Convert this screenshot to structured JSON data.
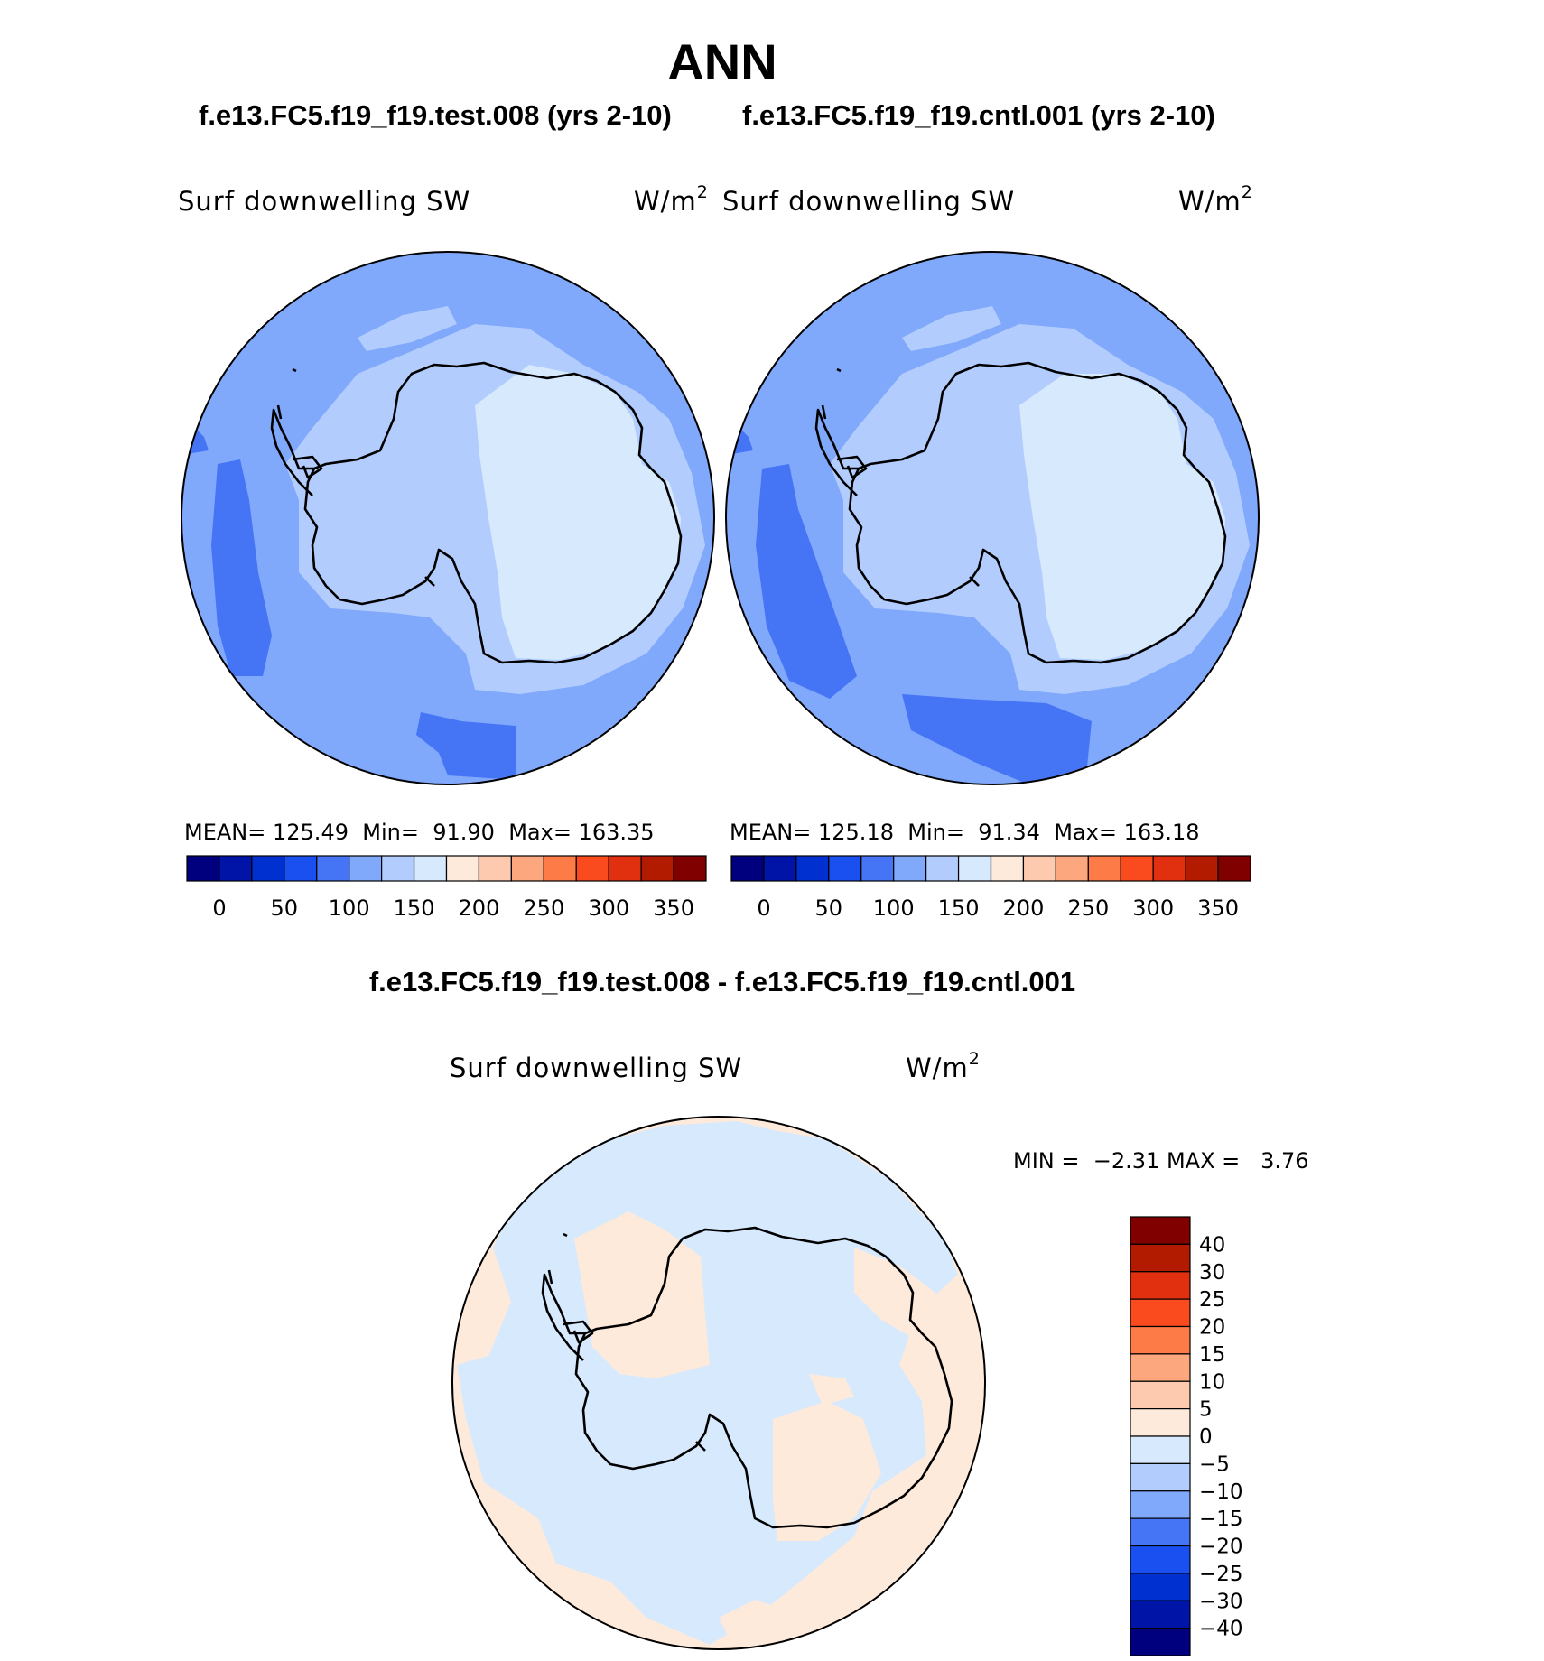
{
  "title": "ANN",
  "panels": [
    {
      "case_label": "f.e13.FC5.f19_f19.test.008 (yrs 2-10)",
      "variable": "Surf  downwelling SW",
      "units": "W/m",
      "units_sup": "2",
      "mean_label": "MEAN=",
      "mean": "125.49",
      "min_label": "Min=",
      "min": "91.90",
      "max_label": "Max=",
      "max": "163.35"
    },
    {
      "case_label": "f.e13.FC5.f19_f19.cntl.001 (yrs 2-10)",
      "variable": "Surf  downwelling SW",
      "units": "W/m",
      "units_sup": "2",
      "mean_label": "MEAN=",
      "mean": "125.18",
      "min_label": "Min=",
      "min": "91.34",
      "max_label": "Max=",
      "max": "163.18"
    }
  ],
  "difference": {
    "title": "f.e13.FC5.f19_f19.test.008 - f.e13.FC5.f19_f19.cntl.001",
    "variable": "Surf  downwelling SW",
    "units": "W/m",
    "units_sup": "2",
    "min_label": "MIN =",
    "min": "−2.31",
    "max_label": "MAX =",
    "max": "3.76"
  },
  "colorbar": {
    "colors": [
      "#00007f",
      "#0015a8",
      "#0030d0",
      "#1a4ff0",
      "#4575f5",
      "#80a8fb",
      "#b2ccfd",
      "#d6e9fd",
      "#feeadb",
      "#fdcab0",
      "#fca77e",
      "#fc7b47",
      "#fa4b1e",
      "#e03010",
      "#b31b00",
      "#800000"
    ],
    "abs_ticks": [
      "0",
      "50",
      "100",
      "150",
      "200",
      "250",
      "300",
      "350"
    ],
    "diff_ticks": [
      "40",
      "30",
      "25",
      "20",
      "15",
      "10",
      "5",
      "0",
      "−5",
      "−10",
      "−15",
      "−20",
      "−25",
      "−30",
      "−40"
    ]
  }
}
